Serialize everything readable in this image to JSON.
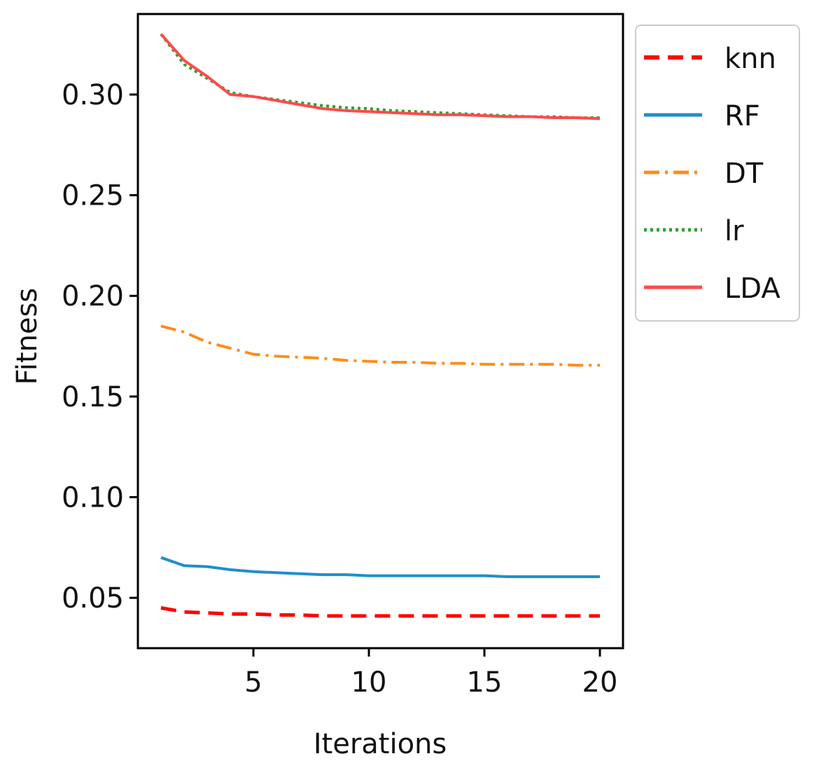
{
  "chart_data": {
    "type": "line",
    "title": "",
    "xlabel": "Iterations",
    "ylabel": "Fitness",
    "xlim": [
      0.0,
      21.0
    ],
    "ylim": [
      0.025,
      0.34
    ],
    "xticks": [
      5,
      10,
      15,
      20
    ],
    "xtick_labels": [
      "5",
      "10",
      "15",
      "20"
    ],
    "yticks": [
      0.05,
      0.1,
      0.15,
      0.2,
      0.25,
      0.3
    ],
    "ytick_labels": [
      "0.05",
      "0.10",
      "0.15",
      "0.20",
      "0.25",
      "0.30"
    ],
    "grid": false,
    "legend_position": "outside-top-right",
    "x": [
      1,
      2,
      3,
      4,
      5,
      6,
      7,
      8,
      9,
      10,
      11,
      12,
      13,
      14,
      15,
      16,
      17,
      18,
      19,
      20
    ],
    "series": [
      {
        "name": "knn",
        "color": "#ff0000",
        "style": "dashed",
        "values": [
          0.045,
          0.043,
          0.0425,
          0.042,
          0.042,
          0.0415,
          0.0415,
          0.041,
          0.041,
          0.041,
          0.041,
          0.041,
          0.041,
          0.041,
          0.041,
          0.041,
          0.041,
          0.041,
          0.041,
          0.041
        ]
      },
      {
        "name": "RF",
        "color": "#1f8fcc",
        "style": "solid",
        "values": [
          0.07,
          0.066,
          0.0655,
          0.064,
          0.063,
          0.0625,
          0.062,
          0.0615,
          0.0615,
          0.061,
          0.061,
          0.061,
          0.061,
          0.061,
          0.061,
          0.0605,
          0.0605,
          0.0605,
          0.0605,
          0.0605
        ]
      },
      {
        "name": "DT",
        "color": "#ff8c1a",
        "style": "dashdot",
        "values": [
          0.185,
          0.182,
          0.177,
          0.174,
          0.171,
          0.17,
          0.1695,
          0.169,
          0.168,
          0.1675,
          0.167,
          0.167,
          0.1665,
          0.1665,
          0.166,
          0.166,
          0.166,
          0.166,
          0.1655,
          0.1655
        ]
      },
      {
        "name": "lr",
        "color": "#2ca02c",
        "style": "dotted",
        "values": [
          0.33,
          0.315,
          0.308,
          0.301,
          0.299,
          0.2975,
          0.296,
          0.2945,
          0.2935,
          0.293,
          0.292,
          0.2915,
          0.291,
          0.2905,
          0.29,
          0.2895,
          0.289,
          0.289,
          0.2885,
          0.2885
        ]
      },
      {
        "name": "LDA",
        "color": "#ff4a4a",
        "style": "solid",
        "values": [
          0.33,
          0.317,
          0.309,
          0.3,
          0.299,
          0.297,
          0.295,
          0.293,
          0.292,
          0.2915,
          0.291,
          0.2905,
          0.29,
          0.29,
          0.2895,
          0.289,
          0.289,
          0.2885,
          0.2885,
          0.288
        ]
      }
    ]
  }
}
